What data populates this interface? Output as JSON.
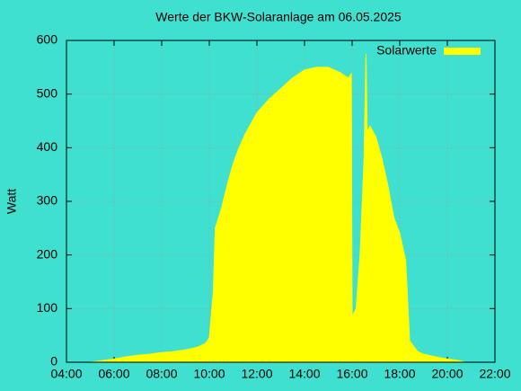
{
  "chart_data": {
    "type": "area",
    "title": "Werte der BKW-Solaranlage am 06.05.2025",
    "ylabel": "Watt",
    "x": [
      "05:00",
      "05:30",
      "06:00",
      "06:30",
      "07:00",
      "07:30",
      "08:00",
      "08:30",
      "09:00",
      "09:30",
      "09:50",
      "10:00",
      "10:10",
      "10:15",
      "10:30",
      "10:45",
      "11:00",
      "11:15",
      "11:30",
      "11:45",
      "12:00",
      "12:30",
      "13:00",
      "13:30",
      "14:00",
      "14:30",
      "15:00",
      "15:30",
      "15:50",
      "15:58",
      "16:00",
      "16:10",
      "16:20",
      "16:30",
      "16:35",
      "16:38",
      "16:45",
      "17:00",
      "17:15",
      "17:30",
      "17:45",
      "18:00",
      "18:15",
      "18:25",
      "18:45",
      "19:00",
      "19:30",
      "20:00",
      "20:30",
      "20:45"
    ],
    "series": [
      {
        "name": "Solarwerte",
        "color": "#ffff00",
        "values": [
          0,
          3,
          6,
          10,
          13,
          15,
          18,
          20,
          23,
          28,
          35,
          45,
          130,
          250,
          285,
          330,
          370,
          400,
          425,
          445,
          465,
          490,
          510,
          530,
          545,
          550,
          550,
          540,
          530,
          538,
          85,
          100,
          200,
          380,
          575,
          430,
          440,
          420,
          380,
          330,
          270,
          240,
          190,
          40,
          20,
          15,
          10,
          6,
          3,
          0
        ]
      }
    ],
    "xlim": [
      "04:00",
      "22:00"
    ],
    "xticks": [
      "04:00",
      "06:00",
      "08:00",
      "10:00",
      "12:00",
      "14:00",
      "16:00",
      "18:00",
      "20:00",
      "22:00"
    ],
    "ylim": [
      0,
      600
    ],
    "yticks": [
      0,
      100,
      200,
      300,
      400,
      500,
      600
    ],
    "grid": true,
    "legend": "top-right"
  }
}
